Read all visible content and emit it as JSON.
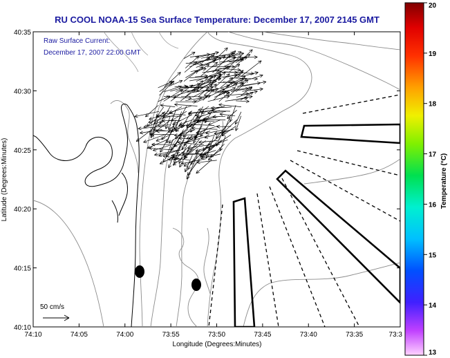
{
  "title": "RU COOL  NOAA-15  Sea Surface Temperature:  December 17, 2007 2145 GMT",
  "current_label": {
    "line1": "Raw Surface Current:",
    "line2": "December 17, 2007 22:00 GMT"
  },
  "scale_label": "50 cm/s",
  "x_axis": {
    "label": "Longitude (Degrees:Minutes)",
    "ticks": [
      "74:10",
      "74:05",
      "74:00",
      "73:55",
      "73:50",
      "73:45",
      "73:40",
      "73:35",
      "73:3"
    ]
  },
  "y_axis": {
    "label": "Latitude (Degrees:Minutes)",
    "ticks": [
      "40:35",
      "40:30",
      "40:25",
      "40:20",
      "40:15",
      "40:10"
    ]
  },
  "colorbar": {
    "label": "Temperature (°C)",
    "ticks": [
      "20",
      "19",
      "18",
      "17",
      "16",
      "15",
      "14",
      "13"
    ],
    "min": 13,
    "max": 20
  },
  "map_features": {
    "coastline": "Northern New Jersey coast with Sandy Hook",
    "current_vectors": "Raw surface current arrows near the harbor entrance",
    "shipping_lanes": "Dashed shipping lanes and outlined traffic-separation zones",
    "markers": "Two black dots offshore"
  }
}
